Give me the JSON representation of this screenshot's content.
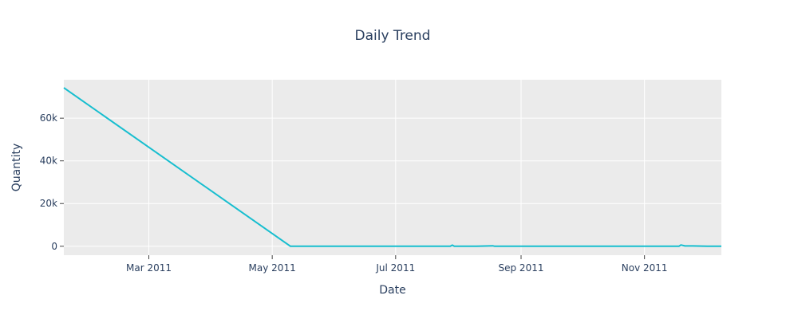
{
  "chart_data": {
    "type": "line",
    "title": "Daily Trend",
    "xlabel": "Date",
    "ylabel": "Quantity",
    "x_tick_labels": [
      "Mar 2011",
      "May 2011",
      "Jul 2011",
      "Sep 2011",
      "Nov 2011"
    ],
    "x_tick_dates": [
      "2011-03-01",
      "2011-05-01",
      "2011-07-01",
      "2011-09-01",
      "2011-11-01"
    ],
    "y_tick_labels": [
      "0",
      "20k",
      "40k",
      "60k"
    ],
    "y_tick_values": [
      0,
      20000,
      40000,
      60000
    ],
    "xlim": [
      "2011-01-18",
      "2011-12-09"
    ],
    "ylim": [
      -4200,
      78000
    ],
    "grid": true,
    "colors": {
      "line": "#17becf",
      "plot_bg": "#ebebeb",
      "grid": "#ffffff"
    },
    "series": [
      {
        "x": [
          "2011-01-18",
          "2011-05-10",
          "2011-06-15",
          "2011-07-20",
          "2011-07-28",
          "2011-07-29",
          "2011-07-30",
          "2011-08-10",
          "2011-08-18",
          "2011-08-19",
          "2011-08-25",
          "2011-09-20",
          "2011-10-20",
          "2011-11-15",
          "2011-11-18",
          "2011-11-19",
          "2011-11-21",
          "2011-11-25",
          "2011-12-02",
          "2011-12-09"
        ],
        "y": [
          74215,
          0,
          0,
          0,
          0,
          500,
          0,
          0,
          200,
          0,
          0,
          0,
          0,
          0,
          0,
          600,
          150,
          150,
          0,
          0
        ]
      }
    ]
  }
}
